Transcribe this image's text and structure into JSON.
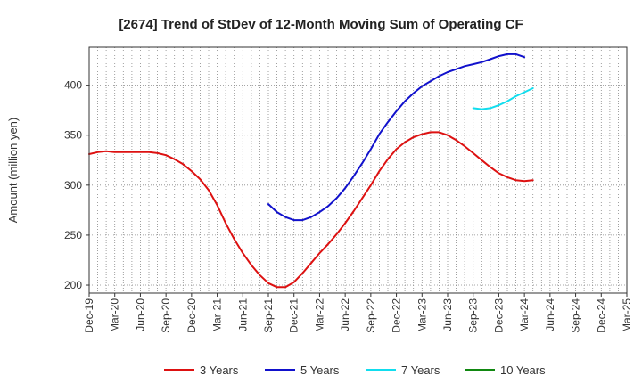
{
  "chart_data": {
    "type": "line",
    "title": "[2674]  Trend of StDev of 12-Month Moving Sum of Operating CF",
    "xlabel": "",
    "ylabel": "Amount (million yen)",
    "ylim": [
      192,
      438
    ],
    "yticks": [
      200,
      250,
      300,
      350,
      400
    ],
    "x_ticks": [
      "Dec-19",
      "Mar-20",
      "Jun-20",
      "Sep-20",
      "Dec-20",
      "Mar-21",
      "Jun-21",
      "Sep-21",
      "Dec-21",
      "Mar-22",
      "Jun-22",
      "Sep-22",
      "Dec-22",
      "Mar-23",
      "Jun-23",
      "Sep-23",
      "Dec-23",
      "Mar-24",
      "Jun-24",
      "Sep-24",
      "Dec-24",
      "Mar-25"
    ],
    "grid": true,
    "legend_position": "bottom",
    "series": [
      {
        "name": "3 Years",
        "color": "#dd1111",
        "start_index": 0,
        "values": [
          331,
          333,
          334,
          333,
          333,
          333,
          333,
          333,
          332,
          330,
          326,
          321,
          314,
          306,
          295,
          280,
          262,
          246,
          232,
          220,
          210,
          202,
          198,
          198,
          203,
          212,
          222,
          232,
          241,
          251,
          262,
          274,
          287,
          300,
          314,
          326,
          336,
          343,
          348,
          351,
          353,
          353,
          350,
          345,
          339,
          332,
          325,
          318,
          312,
          308,
          305,
          304,
          305
        ]
      },
      {
        "name": "5 Years",
        "color": "#1111cc",
        "start_index": 21,
        "values": [
          281,
          273,
          268,
          265,
          265,
          268,
          273,
          279,
          287,
          297,
          309,
          322,
          336,
          351,
          363,
          374,
          384,
          392,
          399,
          404,
          409,
          413,
          416,
          419,
          421,
          423,
          426,
          429,
          431,
          431,
          428
        ]
      },
      {
        "name": "7 Years",
        "color": "#11ddee",
        "start_index": 45,
        "values": [
          377,
          376,
          377,
          380,
          384,
          389,
          393,
          397
        ]
      },
      {
        "name": "10 Years",
        "color": "#118811",
        "start_index": 0,
        "values": []
      }
    ]
  }
}
